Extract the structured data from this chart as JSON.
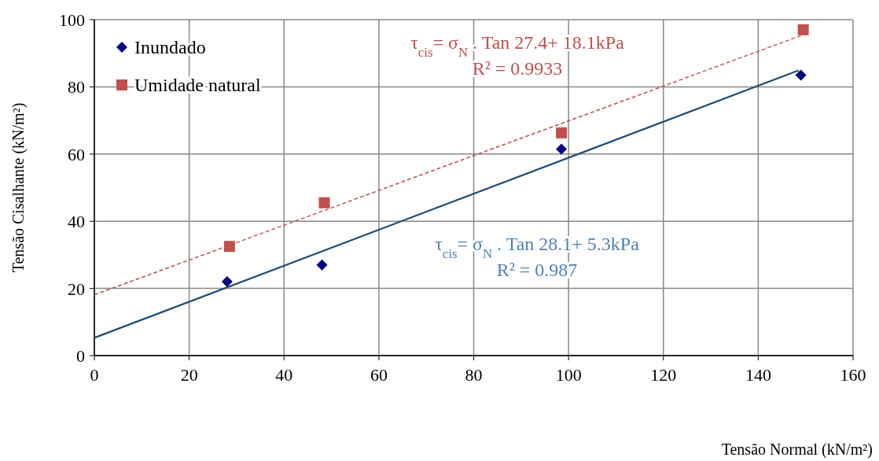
{
  "chart_data": {
    "type": "scatter",
    "xlabel": "Tensão Normal (kN/m²)",
    "ylabel": "Tensão Cisalhante (kN/m²)",
    "xlim": [
      0,
      160
    ],
    "xticks": [
      0,
      20,
      40,
      60,
      80,
      100,
      120,
      140,
      160
    ],
    "ylim": [
      0,
      100
    ],
    "yticks": [
      0,
      20,
      40,
      60,
      80,
      100
    ],
    "grid": true,
    "legend": "top left",
    "series": [
      {
        "name": "Inundado",
        "marker": "diamond",
        "color": "#000080",
        "x": [
          28,
          48,
          98.5,
          149
        ],
        "values": [
          22,
          27,
          61.5,
          83.5
        ]
      },
      {
        "name": "Umidade natural",
        "marker": "square",
        "color": "#c0504d",
        "x": [
          28.5,
          48.5,
          98.5,
          149.5
        ],
        "values": [
          32.5,
          45.5,
          66.3,
          97
        ]
      },
      {
        "type": "line",
        "marker": "none",
        "line_style": "solid",
        "color": "#1f4e79",
        "x": [
          0,
          148.5
        ],
        "values": [
          5.3,
          84.9
        ]
      },
      {
        "type": "line",
        "marker": "none",
        "line_style": "dashed",
        "color": "#c0504d",
        "x": [
          0,
          149.5
        ],
        "values": [
          18.1,
          95.5
        ]
      }
    ],
    "annotations": [
      "τ$_{cis}$= σ$_{N}$ . Tan 27.4+ 18.1kPa",
      "R² = 0.9933",
      "τ$_{cis}$= σ$_{N}$ . Tan 28.1+ 5.3kPa",
      "R² = 0.987"
    ]
  }
}
